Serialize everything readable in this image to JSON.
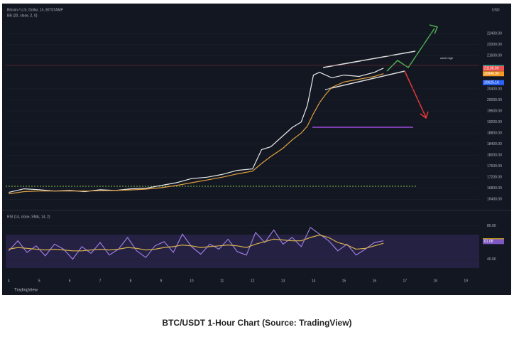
{
  "header": {
    "symbol": "Bitcoin / U.S. Dollar, 1h, BITSTAMP",
    "indicator": "BB (20, close, 2, 0)",
    "currency": "USD",
    "brand": "TradingView"
  },
  "caption": "BTC/USDT 1-Hour Chart (Source: TradingView)",
  "chart_data": [
    {
      "type": "line",
      "annotation": "week high",
      "x": [
        4,
        4.5,
        5,
        5.5,
        6,
        6.5,
        7,
        7.5,
        8,
        8.5,
        9,
        9.5,
        10,
        10.5,
        11,
        11.5,
        12,
        12.3,
        12.6,
        13,
        13.3,
        13.6,
        13.8,
        14,
        14.2,
        14.4,
        14.6,
        15,
        15.5,
        16,
        16.3
      ],
      "series": [
        {
          "color": "#e8e8e8",
          "values": [
            16650,
            16780,
            16750,
            16700,
            16720,
            16680,
            16750,
            16720,
            16780,
            16800,
            16900,
            17000,
            17150,
            17200,
            17300,
            17450,
            17500,
            18200,
            18300,
            18700,
            19000,
            19200,
            19800,
            20900,
            21000,
            20900,
            20800,
            20900,
            20850,
            21000,
            21150
          ]
        },
        {
          "color": "#e0a040",
          "values": [
            16600,
            16680,
            16700,
            16700,
            16700,
            16700,
            16710,
            16720,
            16740,
            16770,
            16820,
            16900,
            17000,
            17100,
            17200,
            17320,
            17420,
            17700,
            17950,
            18250,
            18550,
            18800,
            19050,
            19500,
            19900,
            20200,
            20450,
            20650,
            20750,
            20850,
            20950
          ]
        }
      ],
      "xlim": [
        3.9,
        19.44
      ],
      "xticks": [
        4,
        5,
        6,
        7,
        8,
        9,
        10,
        11,
        12,
        13,
        14,
        15,
        16,
        17,
        18,
        19
      ],
      "ylim": [
        16100,
        23360
      ],
      "yticks": [
        {
          "value": 16400,
          "label": "16400.00"
        },
        {
          "value": 16800,
          "label": "16800.00"
        },
        {
          "value": 17200,
          "label": "17200.00"
        },
        {
          "value": 17600,
          "label": "17600.00"
        },
        {
          "value": 18000,
          "label": "18000.00"
        },
        {
          "value": 18400,
          "label": "18400.00"
        },
        {
          "value": 18800,
          "label": "18800.00"
        },
        {
          "value": 19200,
          "label": "19200.00"
        },
        {
          "value": 19600,
          "label": "19600.00"
        },
        {
          "value": 20000,
          "label": "20000.00"
        },
        {
          "value": 20400,
          "label": "20400.00"
        },
        {
          "value": 21600,
          "label": "21600.00"
        },
        {
          "value": 22000,
          "label": "22000.00"
        },
        {
          "value": 22400,
          "label": "22400.00"
        }
      ],
      "markers": [
        {
          "value": 21168.64,
          "label": "21168.64",
          "color": "#26a69a"
        },
        {
          "value": 21136,
          "label": "21136.00",
          "color": "#ef5350"
        },
        {
          "value": 20946.9,
          "label": "20946.90",
          "color": "#f59b23"
        },
        {
          "value": 20625.16,
          "label": "20625.16",
          "color": "#2962ff"
        }
      ]
    },
    {
      "type": "line",
      "title": "RSI (14, close, SMA, 14, 2)",
      "x": [
        4,
        4.3,
        4.6,
        4.9,
        5.2,
        5.5,
        5.8,
        6.1,
        6.4,
        6.7,
        7,
        7.3,
        7.6,
        7.9,
        8.2,
        8.5,
        8.8,
        9.1,
        9.4,
        9.7,
        10,
        10.3,
        10.6,
        10.9,
        11.2,
        11.5,
        11.8,
        12.1,
        12.4,
        12.7,
        13,
        13.3,
        13.6,
        13.9,
        14.2,
        14.5,
        14.8,
        15.1,
        15.4,
        15.7,
        16,
        16.3
      ],
      "series": [
        {
          "color": "#9c7be0",
          "values": [
            50,
            62,
            48,
            56,
            44,
            58,
            52,
            40,
            55,
            47,
            60,
            45,
            52,
            66,
            50,
            42,
            56,
            61,
            48,
            70,
            55,
            46,
            58,
            52,
            64,
            49,
            45,
            72,
            60,
            75,
            58,
            66,
            55,
            78,
            70,
            62,
            50,
            58,
            45,
            52,
            60,
            62
          ]
        },
        {
          "color": "#d6b24a",
          "values": [
            52,
            54,
            53,
            52,
            51,
            52,
            51,
            50,
            50,
            51,
            52,
            51,
            52,
            54,
            53,
            51,
            52,
            54,
            55,
            57,
            56,
            54,
            55,
            56,
            57,
            56,
            54,
            58,
            61,
            64,
            63,
            62,
            62,
            66,
            69,
            66,
            60,
            57,
            52,
            53,
            56,
            59
          ]
        }
      ],
      "xlim": [
        3.9,
        19.44
      ],
      "ylim": [
        20,
        95
      ],
      "yticks": [
        {
          "value": 40,
          "label": "40.00"
        },
        {
          "value": 80,
          "label": "80.00"
        }
      ],
      "markers": [
        {
          "value": 61.96,
          "label": "61.96",
          "color": "#f5c518"
        },
        {
          "value": 61.08,
          "label": "61.08",
          "color": "#7e57c2"
        }
      ]
    }
  ]
}
